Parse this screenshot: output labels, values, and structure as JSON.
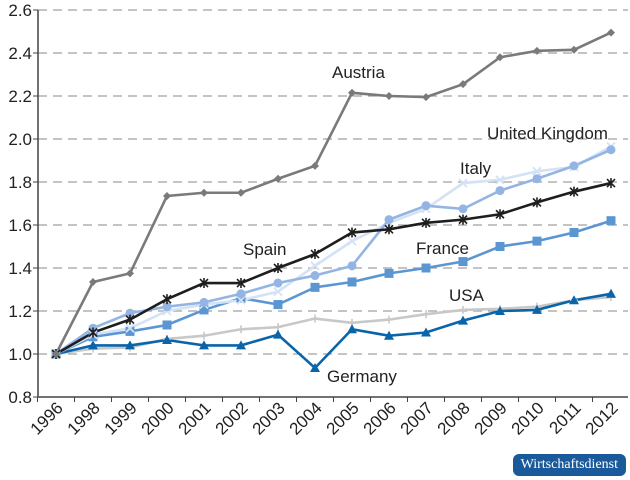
{
  "chart_data": {
    "type": "line",
    "categories": [
      "1996",
      "1998",
      "1999",
      "2000",
      "2001",
      "2002",
      "2003",
      "2004",
      "2005",
      "2006",
      "2007",
      "2008",
      "2009",
      "2010",
      "2011",
      "2012"
    ],
    "ylim": [
      0.8,
      2.6
    ],
    "yticks": [
      "0.8",
      "1.0",
      "1.2",
      "1.4",
      "1.6",
      "1.8",
      "2.0",
      "2.2",
      "2.4",
      "2.6"
    ],
    "grid": true,
    "series": [
      {
        "name": "USA",
        "color": "#c8c8c8",
        "marker": "plus",
        "values": [
          1.0,
          1.025,
          1.03,
          1.07,
          1.085,
          1.115,
          1.125,
          1.165,
          1.145,
          1.16,
          1.185,
          1.205,
          1.21,
          1.22,
          1.25,
          1.265
        ]
      },
      {
        "name": "Germany",
        "color": "#0a64aa",
        "marker": "triangle",
        "values": [
          1.0,
          1.04,
          1.04,
          1.065,
          1.04,
          1.04,
          1.09,
          0.935,
          1.115,
          1.085,
          1.1,
          1.155,
          1.2,
          1.205,
          1.25,
          1.28
        ]
      },
      {
        "name": "France",
        "color": "#5b96d2",
        "marker": "square",
        "values": [
          1.0,
          1.08,
          1.105,
          1.135,
          1.205,
          1.26,
          1.23,
          1.31,
          1.335,
          1.375,
          1.4,
          1.43,
          1.5,
          1.525,
          1.565,
          1.62
        ]
      },
      {
        "name": "Italy",
        "color": "#d4e2f6",
        "marker": "x",
        "values": [
          1.0,
          1.09,
          1.12,
          1.2,
          1.23,
          1.25,
          1.29,
          1.41,
          1.525,
          1.61,
          1.675,
          1.795,
          1.81,
          1.85,
          1.87,
          1.965
        ]
      },
      {
        "name": "United Kingdom",
        "color": "#94b5e3",
        "marker": "circle",
        "values": [
          1.0,
          1.12,
          1.19,
          1.22,
          1.24,
          1.28,
          1.33,
          1.365,
          1.41,
          1.625,
          1.69,
          1.675,
          1.76,
          1.815,
          1.875,
          1.95
        ]
      },
      {
        "name": "Spain",
        "color": "#1e1e1e",
        "marker": "star",
        "values": [
          1.0,
          1.1,
          1.16,
          1.255,
          1.33,
          1.33,
          1.4,
          1.465,
          1.565,
          1.58,
          1.61,
          1.625,
          1.65,
          1.705,
          1.755,
          1.795
        ]
      },
      {
        "name": "Austria",
        "color": "#7a7a7a",
        "marker": "diamond",
        "values": [
          1.0,
          1.335,
          1.375,
          1.735,
          1.75,
          1.75,
          1.815,
          1.875,
          2.215,
          2.2,
          2.195,
          2.255,
          2.38,
          2.41,
          2.415,
          2.495
        ]
      }
    ]
  },
  "labels": {
    "austria": "Austria",
    "uk": "United Kingdom",
    "italy": "Italy",
    "spain": "Spain",
    "france": "France",
    "usa": "USA",
    "germany": "Germany"
  },
  "logo": "Wirtschaftsdienst"
}
